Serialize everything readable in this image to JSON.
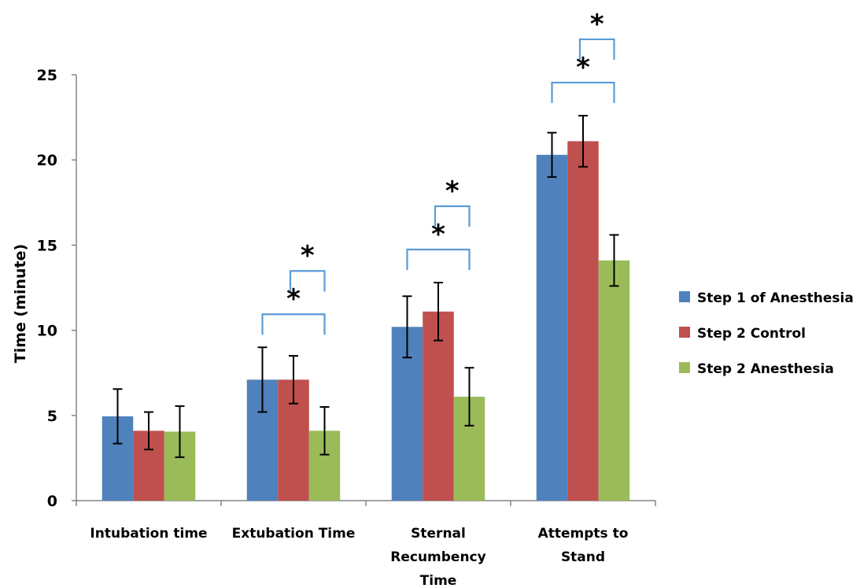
{
  "chart_data": {
    "type": "bar",
    "categories": [
      [
        "Intubation time"
      ],
      [
        "Extubation Time"
      ],
      [
        "Sternal",
        "Recumbency",
        "Time"
      ],
      [
        "Attempts to",
        "Stand"
      ]
    ],
    "ylabel": "Time (minute)",
    "ylim": [
      0,
      25
    ],
    "yticks": [
      0,
      5,
      10,
      15,
      20,
      25
    ],
    "legend_position": "right",
    "grid": false,
    "series": [
      {
        "name": "Step 1 of Anesthesia",
        "color": "#4f81bd",
        "values": [
          4.95,
          7.1,
          10.2,
          20.3
        ],
        "errors": [
          1.6,
          1.9,
          1.8,
          1.3
        ]
      },
      {
        "name": "Step 2 Control",
        "color": "#c0504d",
        "values": [
          4.1,
          7.1,
          11.1,
          21.1
        ],
        "errors": [
          1.1,
          1.4,
          1.7,
          1.5
        ]
      },
      {
        "name": "Step 2 Anesthesia",
        "color": "#9bbb59",
        "values": [
          4.05,
          4.1,
          6.1,
          14.1
        ],
        "errors": [
          1.5,
          1.4,
          1.7,
          1.5
        ]
      }
    ],
    "significance": [
      {
        "category": 1,
        "from_series": 0,
        "to_series": 2,
        "level": 1,
        "label": "*"
      },
      {
        "category": 1,
        "from_series": 1,
        "to_series": 2,
        "level": 2,
        "label": "*"
      },
      {
        "category": 2,
        "from_series": 0,
        "to_series": 2,
        "level": 1,
        "label": "*"
      },
      {
        "category": 2,
        "from_series": 1,
        "to_series": 2,
        "level": 2,
        "label": "*"
      },
      {
        "category": 3,
        "from_series": 0,
        "to_series": 2,
        "level": 1,
        "label": "*"
      },
      {
        "category": 3,
        "from_series": 1,
        "to_series": 2,
        "level": 2,
        "label": "*"
      }
    ],
    "bracket_color": "#5b9bd5"
  }
}
